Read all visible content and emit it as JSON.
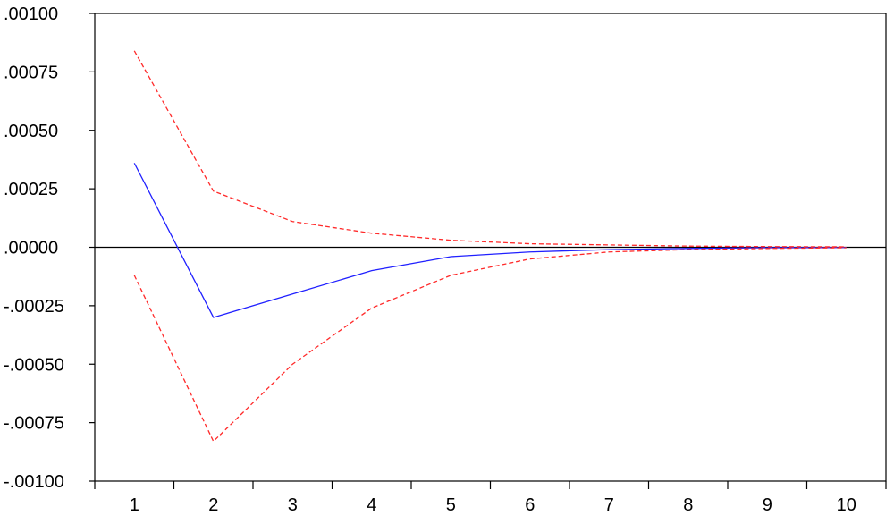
{
  "chart_data": {
    "type": "line",
    "title": "",
    "xlabel": "",
    "ylabel": "",
    "x": [
      1,
      2,
      3,
      4,
      5,
      6,
      7,
      8,
      9,
      10
    ],
    "xlim": [
      0.5,
      10.5
    ],
    "ylim": [
      -0.001,
      0.001
    ],
    "y_ticks": [
      0.001,
      0.00075,
      0.0005,
      0.00025,
      0,
      -0.00025,
      -0.0005,
      -0.00075,
      -0.001
    ],
    "y_tick_labels": [
      ".00100",
      ".00075",
      ".00050",
      ".00025",
      ".00000",
      "-.00025",
      "-.00050",
      "-.00075",
      "-.00100"
    ],
    "x_tick_labels": [
      "1",
      "2",
      "3",
      "4",
      "5",
      "6",
      "7",
      "8",
      "9",
      "10"
    ],
    "grid": false,
    "zero_line": true,
    "series": [
      {
        "role": "response",
        "style": "solid",
        "color": "#2020ff",
        "values": [
          0.00036,
          -0.0003,
          -0.0002,
          -0.0001,
          -4e-05,
          -2e-05,
          -1e-05,
          -5e-06,
          -2e-06,
          -1e-06
        ]
      },
      {
        "role": "upper-band",
        "style": "dashed",
        "color": "#ff2a2a",
        "values": [
          0.00084,
          0.00024,
          0.00011,
          6e-05,
          3e-05,
          1.5e-05,
          1e-05,
          5e-06,
          3e-06,
          2e-06
        ]
      },
      {
        "role": "lower-band",
        "style": "dashed",
        "color": "#ff2a2a",
        "values": [
          -0.00012,
          -0.00083,
          -0.0005,
          -0.00026,
          -0.00012,
          -5e-05,
          -2e-05,
          -1e-05,
          -5e-06,
          -2e-06
        ]
      }
    ],
    "colors": {
      "axis": "#000000",
      "zero_line": "#000000",
      "background": "#ffffff"
    }
  }
}
